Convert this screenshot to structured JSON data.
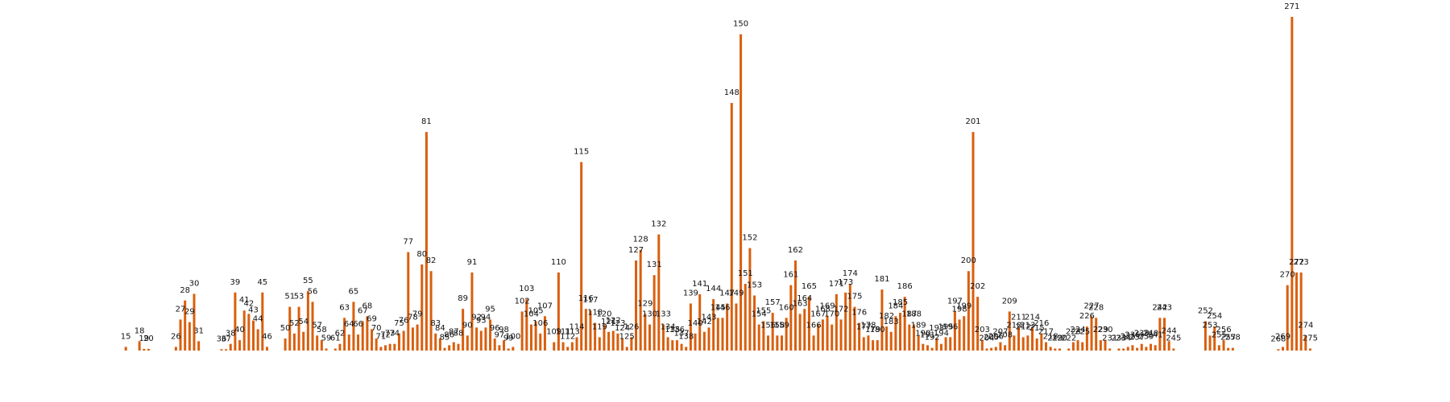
{
  "chart_data": {
    "type": "bar",
    "title": "",
    "xlabel": "",
    "ylabel": "",
    "bar_color": "#d95f0e",
    "label_color": "#111111",
    "grid": false,
    "legend": "none",
    "ylim": [
      0,
      100
    ],
    "x_first": 1,
    "x_last": 276,
    "points": [
      {
        "x": 15,
        "value": 1.1
      },
      {
        "x": 18,
        "value": 2.8
      },
      {
        "x": 19,
        "value": 0.5
      },
      {
        "x": 20,
        "value": 0.5
      },
      {
        "x": 26,
        "value": 1.1
      },
      {
        "x": 27,
        "value": 9.3
      },
      {
        "x": 28,
        "value": 15.0
      },
      {
        "x": 29,
        "value": 8.5
      },
      {
        "x": 30,
        "value": 17.0
      },
      {
        "x": 31,
        "value": 2.8
      },
      {
        "x": 36,
        "value": 0.4
      },
      {
        "x": 37,
        "value": 0.4
      },
      {
        "x": 38,
        "value": 2.0
      },
      {
        "x": 39,
        "value": 17.4
      },
      {
        "x": 40,
        "value": 3.1
      },
      {
        "x": 41,
        "value": 12.0
      },
      {
        "x": 42,
        "value": 11.0
      },
      {
        "x": 43,
        "value": 9.0
      },
      {
        "x": 44,
        "value": 6.4
      },
      {
        "x": 45,
        "value": 17.4
      },
      {
        "x": 46,
        "value": 1.1
      },
      {
        "x": 50,
        "value": 3.6
      },
      {
        "x": 51,
        "value": 13.1
      },
      {
        "x": 52,
        "value": 5.1
      },
      {
        "x": 53,
        "value": 13.1
      },
      {
        "x": 54,
        "value": 5.6
      },
      {
        "x": 55,
        "value": 17.8
      },
      {
        "x": 56,
        "value": 14.6
      },
      {
        "x": 57,
        "value": 4.5
      },
      {
        "x": 58,
        "value": 3.1
      },
      {
        "x": 59,
        "value": 0.6
      },
      {
        "x": 61,
        "value": 0.6
      },
      {
        "x": 62,
        "value": 2.0
      },
      {
        "x": 63,
        "value": 9.8
      },
      {
        "x": 64,
        "value": 4.8
      },
      {
        "x": 65,
        "value": 14.6
      },
      {
        "x": 66,
        "value": 4.8
      },
      {
        "x": 67,
        "value": 8.8
      },
      {
        "x": 68,
        "value": 10.3
      },
      {
        "x": 69,
        "value": 6.4
      },
      {
        "x": 70,
        "value": 3.6
      },
      {
        "x": 71,
        "value": 1.1
      },
      {
        "x": 72,
        "value": 1.6
      },
      {
        "x": 73,
        "value": 2.0
      },
      {
        "x": 74,
        "value": 2.0
      },
      {
        "x": 75,
        "value": 5.1
      },
      {
        "x": 76,
        "value": 5.9
      },
      {
        "x": 77,
        "value": 29.5
      },
      {
        "x": 78,
        "value": 6.9
      },
      {
        "x": 79,
        "value": 7.8
      },
      {
        "x": 80,
        "value": 25.8
      },
      {
        "x": 81,
        "value": 65.5
      },
      {
        "x": 82,
        "value": 23.8
      },
      {
        "x": 83,
        "value": 5.1
      },
      {
        "x": 84,
        "value": 3.6
      },
      {
        "x": 85,
        "value": 0.8
      },
      {
        "x": 86,
        "value": 1.6
      },
      {
        "x": 87,
        "value": 2.5
      },
      {
        "x": 88,
        "value": 2.0
      },
      {
        "x": 89,
        "value": 12.5
      },
      {
        "x": 90,
        "value": 4.5
      },
      {
        "x": 91,
        "value": 23.4
      },
      {
        "x": 92,
        "value": 6.9
      },
      {
        "x": 93,
        "value": 5.9
      },
      {
        "x": 94,
        "value": 6.9
      },
      {
        "x": 95,
        "value": 9.3
      },
      {
        "x": 96,
        "value": 3.6
      },
      {
        "x": 97,
        "value": 1.6
      },
      {
        "x": 98,
        "value": 3.1
      },
      {
        "x": 99,
        "value": 0.6
      },
      {
        "x": 100,
        "value": 1.1
      },
      {
        "x": 102,
        "value": 11.7
      },
      {
        "x": 103,
        "value": 15.4
      },
      {
        "x": 104,
        "value": 7.8
      },
      {
        "x": 105,
        "value": 8.8
      },
      {
        "x": 106,
        "value": 5.1
      },
      {
        "x": 107,
        "value": 10.3
      },
      {
        "x": 109,
        "value": 2.5
      },
      {
        "x": 110,
        "value": 23.4
      },
      {
        "x": 111,
        "value": 2.5
      },
      {
        "x": 112,
        "value": 1.1
      },
      {
        "x": 113,
        "value": 2.5
      },
      {
        "x": 114,
        "value": 4.0
      },
      {
        "x": 115,
        "value": 56.5
      },
      {
        "x": 116,
        "value": 12.5
      },
      {
        "x": 117,
        "value": 12.0
      },
      {
        "x": 118,
        "value": 8.3
      },
      {
        "x": 119,
        "value": 4.0
      },
      {
        "x": 120,
        "value": 7.8
      },
      {
        "x": 121,
        "value": 5.6
      },
      {
        "x": 122,
        "value": 5.9
      },
      {
        "x": 123,
        "value": 5.1
      },
      {
        "x": 124,
        "value": 3.6
      },
      {
        "x": 125,
        "value": 1.1
      },
      {
        "x": 126,
        "value": 4.0
      },
      {
        "x": 127,
        "value": 27.0
      },
      {
        "x": 128,
        "value": 30.2
      },
      {
        "x": 129,
        "value": 11.0
      },
      {
        "x": 130,
        "value": 7.8
      },
      {
        "x": 131,
        "value": 22.6
      },
      {
        "x": 132,
        "value": 34.8
      },
      {
        "x": 133,
        "value": 7.8
      },
      {
        "x": 134,
        "value": 4.0
      },
      {
        "x": 135,
        "value": 3.1
      },
      {
        "x": 136,
        "value": 3.1
      },
      {
        "x": 137,
        "value": 2.0
      },
      {
        "x": 138,
        "value": 1.1
      },
      {
        "x": 139,
        "value": 14.1
      },
      {
        "x": 140,
        "value": 5.1
      },
      {
        "x": 141,
        "value": 16.9
      },
      {
        "x": 142,
        "value": 5.6
      },
      {
        "x": 143,
        "value": 6.9
      },
      {
        "x": 144,
        "value": 15.4
      },
      {
        "x": 145,
        "value": 9.8
      },
      {
        "x": 146,
        "value": 9.8
      },
      {
        "x": 147,
        "value": 14.1
      },
      {
        "x": 148,
        "value": 74.2
      },
      {
        "x": 149,
        "value": 14.1
      },
      {
        "x": 150,
        "value": 94.8
      },
      {
        "x": 151,
        "value": 20.0
      },
      {
        "x": 152,
        "value": 30.7
      },
      {
        "x": 153,
        "value": 16.5
      },
      {
        "x": 154,
        "value": 7.8
      },
      {
        "x": 155,
        "value": 8.8
      },
      {
        "x": 156,
        "value": 4.5
      },
      {
        "x": 157,
        "value": 11.3
      },
      {
        "x": 158,
        "value": 4.5
      },
      {
        "x": 159,
        "value": 4.5
      },
      {
        "x": 160,
        "value": 9.8
      },
      {
        "x": 161,
        "value": 19.6
      },
      {
        "x": 162,
        "value": 27.0
      },
      {
        "x": 163,
        "value": 11.0
      },
      {
        "x": 164,
        "value": 12.5
      },
      {
        "x": 165,
        "value": 16.1
      },
      {
        "x": 166,
        "value": 4.5
      },
      {
        "x": 167,
        "value": 7.8
      },
      {
        "x": 168,
        "value": 9.3
      },
      {
        "x": 169,
        "value": 10.3
      },
      {
        "x": 170,
        "value": 7.8
      },
      {
        "x": 171,
        "value": 16.9
      },
      {
        "x": 172,
        "value": 9.3
      },
      {
        "x": 173,
        "value": 17.4
      },
      {
        "x": 174,
        "value": 20.0
      },
      {
        "x": 175,
        "value": 13.1
      },
      {
        "x": 176,
        "value": 8.3
      },
      {
        "x": 177,
        "value": 4.0
      },
      {
        "x": 178,
        "value": 4.5
      },
      {
        "x": 179,
        "value": 3.1
      },
      {
        "x": 180,
        "value": 3.1
      },
      {
        "x": 181,
        "value": 18.3
      },
      {
        "x": 182,
        "value": 7.2
      },
      {
        "x": 183,
        "value": 5.6
      },
      {
        "x": 184,
        "value": 10.3
      },
      {
        "x": 185,
        "value": 11.3
      },
      {
        "x": 186,
        "value": 16.1
      },
      {
        "x": 187,
        "value": 7.8
      },
      {
        "x": 188,
        "value": 7.8
      },
      {
        "x": 189,
        "value": 4.5
      },
      {
        "x": 190,
        "value": 2.0
      },
      {
        "x": 191,
        "value": 1.6
      },
      {
        "x": 192,
        "value": 0.8
      },
      {
        "x": 193,
        "value": 3.6
      },
      {
        "x": 194,
        "value": 2.0
      },
      {
        "x": 195,
        "value": 4.0
      },
      {
        "x": 196,
        "value": 4.0
      },
      {
        "x": 197,
        "value": 11.7
      },
      {
        "x": 198,
        "value": 9.3
      },
      {
        "x": 199,
        "value": 10.3
      },
      {
        "x": 200,
        "value": 23.8
      },
      {
        "x": 201,
        "value": 65.5
      },
      {
        "x": 202,
        "value": 16.1
      },
      {
        "x": 203,
        "value": 3.1
      },
      {
        "x": 204,
        "value": 0.6
      },
      {
        "x": 205,
        "value": 0.8
      },
      {
        "x": 206,
        "value": 1.1
      },
      {
        "x": 207,
        "value": 2.5
      },
      {
        "x": 208,
        "value": 1.6
      },
      {
        "x": 209,
        "value": 11.7
      },
      {
        "x": 210,
        "value": 4.5
      },
      {
        "x": 211,
        "value": 6.9
      },
      {
        "x": 212,
        "value": 4.0
      },
      {
        "x": 213,
        "value": 4.5
      },
      {
        "x": 214,
        "value": 6.9
      },
      {
        "x": 215,
        "value": 3.6
      },
      {
        "x": 216,
        "value": 5.1
      },
      {
        "x": 217,
        "value": 2.5
      },
      {
        "x": 218,
        "value": 1.1
      },
      {
        "x": 219,
        "value": 0.6
      },
      {
        "x": 220,
        "value": 0.6
      },
      {
        "x": 222,
        "value": 0.6
      },
      {
        "x": 223,
        "value": 2.5
      },
      {
        "x": 224,
        "value": 3.1
      },
      {
        "x": 225,
        "value": 2.5
      },
      {
        "x": 226,
        "value": 7.2
      },
      {
        "x": 227,
        "value": 10.3
      },
      {
        "x": 228,
        "value": 9.8
      },
      {
        "x": 229,
        "value": 3.1
      },
      {
        "x": 230,
        "value": 3.1
      },
      {
        "x": 231,
        "value": 0.6
      },
      {
        "x": 233,
        "value": 0.6
      },
      {
        "x": 234,
        "value": 0.6
      },
      {
        "x": 235,
        "value": 1.1
      },
      {
        "x": 236,
        "value": 1.6
      },
      {
        "x": 237,
        "value": 0.8
      },
      {
        "x": 238,
        "value": 2.0
      },
      {
        "x": 239,
        "value": 1.1
      },
      {
        "x": 240,
        "value": 2.0
      },
      {
        "x": 241,
        "value": 1.6
      },
      {
        "x": 242,
        "value": 9.8
      },
      {
        "x": 243,
        "value": 9.8
      },
      {
        "x": 244,
        "value": 2.8
      },
      {
        "x": 245,
        "value": 0.6
      },
      {
        "x": 252,
        "value": 8.8
      },
      {
        "x": 253,
        "value": 4.5
      },
      {
        "x": 254,
        "value": 7.2
      },
      {
        "x": 255,
        "value": 1.6
      },
      {
        "x": 256,
        "value": 3.1
      },
      {
        "x": 257,
        "value": 0.8
      },
      {
        "x": 258,
        "value": 0.8
      },
      {
        "x": 268,
        "value": 0.4
      },
      {
        "x": 269,
        "value": 1.1
      },
      {
        "x": 270,
        "value": 19.6
      },
      {
        "x": 271,
        "value": 100.0
      },
      {
        "x": 272,
        "value": 23.4
      },
      {
        "x": 273,
        "value": 23.4
      },
      {
        "x": 274,
        "value": 4.5
      },
      {
        "x": 275,
        "value": 0.6
      }
    ]
  }
}
